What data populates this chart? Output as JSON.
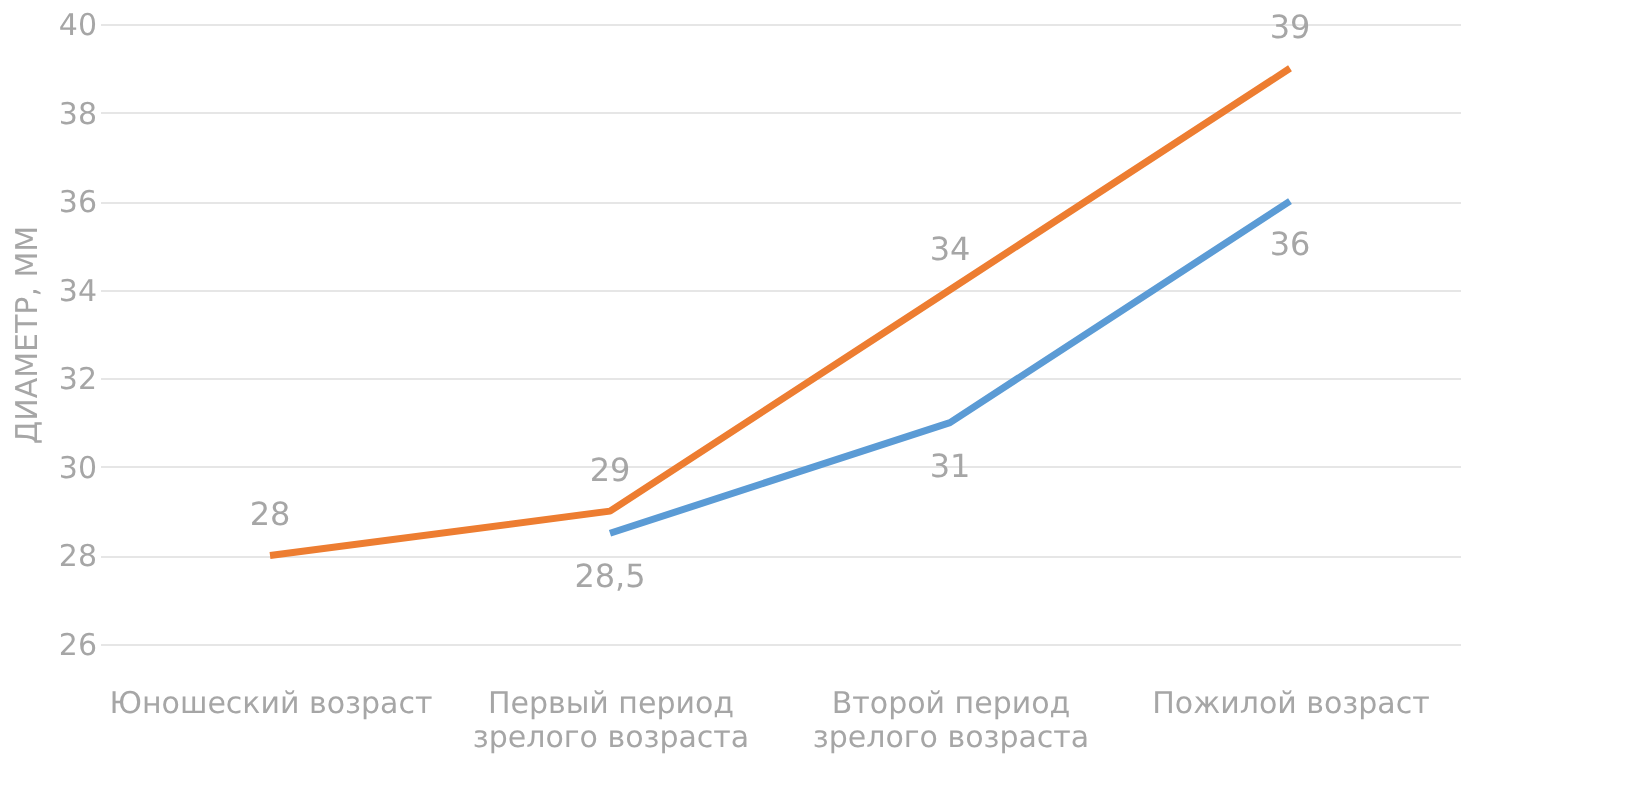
{
  "chart_data": {
    "type": "line",
    "ylabel": "ДИАМЕТР, ММ",
    "categories": [
      "Юношеский возраст",
      "Первый период зрелого возраста",
      "Второй период зрелого возраста",
      "Пожилой возраст"
    ],
    "series": [
      {
        "color": "#ed7d31",
        "values": [
          28,
          29,
          34,
          39
        ],
        "value_labels": [
          "28",
          "29",
          "34",
          "39"
        ]
      },
      {
        "color": "#5b9bd5",
        "values": [
          null,
          28.5,
          31,
          36
        ],
        "value_labels": [
          null,
          "28,5",
          "31",
          "36"
        ]
      }
    ],
    "ylim": [
      26,
      40
    ],
    "yticks": [
      26,
      28,
      30,
      32,
      34,
      36,
      38,
      40
    ],
    "grid": "y",
    "marker": "none",
    "line_style": "solid"
  }
}
